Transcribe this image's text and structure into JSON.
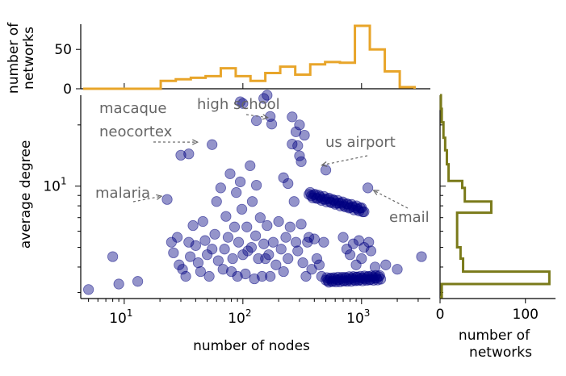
{
  "chart_data": [
    {
      "type": "scatter",
      "xlabel": "number of nodes",
      "ylabel": "average degree",
      "x_scale": "log",
      "y_scale": "log",
      "xlim": [
        4.3,
        3800
      ],
      "ylim": [
        2.8,
        28
      ],
      "x_ticks": [
        {
          "value": 10,
          "label": "10",
          "sup": "1"
        },
        {
          "value": 100,
          "label": "10",
          "sup": "2"
        },
        {
          "value": 1000,
          "label": "10",
          "sup": "3"
        }
      ],
      "y_ticks": [
        {
          "value": 10,
          "label": "10",
          "sup": "1"
        }
      ],
      "point_color": "#000080",
      "annotations": [
        {
          "lines": [
            "macaque",
            "neocortex"
          ],
          "x": 47,
          "y": 15.3
        },
        {
          "lines": [
            "high school"
          ],
          "x": 175,
          "y": 20.2
        },
        {
          "lines": [
            "us airport"
          ],
          "x": 500,
          "y": 12.0
        },
        {
          "lines": [
            "malaria"
          ],
          "x": 23,
          "y": 8.6
        },
        {
          "lines": [
            "email"
          ],
          "x": 1130,
          "y": 9.8
        }
      ],
      "points": [
        [
          5,
          3.1
        ],
        [
          8,
          4.5
        ],
        [
          9,
          3.3
        ],
        [
          13,
          3.4
        ],
        [
          23,
          8.6
        ],
        [
          25,
          5.3
        ],
        [
          26,
          4.7
        ],
        [
          28,
          5.6
        ],
        [
          29,
          4.1
        ],
        [
          31,
          3.9
        ],
        [
          33,
          3.6
        ],
        [
          35,
          5.3
        ],
        [
          36,
          4.5
        ],
        [
          38,
          6.4
        ],
        [
          40,
          5.1
        ],
        [
          42,
          4.2
        ],
        [
          44,
          3.8
        ],
        [
          46,
          6.7
        ],
        [
          48,
          5.4
        ],
        [
          50,
          4.6
        ],
        [
          52,
          3.6
        ],
        [
          55,
          4.9
        ],
        [
          58,
          5.8
        ],
        [
          60,
          8.4
        ],
        [
          62,
          4.3
        ],
        [
          65,
          9.8
        ],
        [
          68,
          3.9
        ],
        [
          70,
          4.9
        ],
        [
          72,
          7.1
        ],
        [
          75,
          5.6
        ],
        [
          78,
          11.5
        ],
        [
          80,
          3.8
        ],
        [
          82,
          4.4
        ],
        [
          85,
          6.3
        ],
        [
          88,
          9.3
        ],
        [
          90,
          3.6
        ],
        [
          92,
          5.3
        ],
        [
          95,
          10.5
        ],
        [
          98,
          7.7
        ],
        [
          100,
          4.6
        ],
        [
          105,
          3.7
        ],
        [
          108,
          6.3
        ],
        [
          110,
          4.8
        ],
        [
          115,
          12.6
        ],
        [
          118,
          5.0
        ],
        [
          120,
          8.4
        ],
        [
          125,
          3.5
        ],
        [
          128,
          5.7
        ],
        [
          130,
          10.1
        ],
        [
          135,
          4.4
        ],
        [
          140,
          7.0
        ],
        [
          145,
          3.6
        ],
        [
          150,
          5.2
        ],
        [
          155,
          4.4
        ],
        [
          160,
          6.4
        ],
        [
          165,
          4.6
        ],
        [
          170,
          3.6
        ],
        [
          175,
          20.2
        ],
        [
          180,
          5.3
        ],
        [
          190,
          4.1
        ],
        [
          200,
          6.7
        ],
        [
          210,
          4.9
        ],
        [
          220,
          3.8
        ],
        [
          230,
          5.6
        ],
        [
          240,
          4.4
        ],
        [
          250,
          6.3
        ],
        [
          260,
          16.1
        ],
        [
          270,
          8.4
        ],
        [
          280,
          5.3
        ],
        [
          290,
          4.8
        ],
        [
          300,
          20.0
        ],
        [
          310,
          6.5
        ],
        [
          320,
          4.2
        ],
        [
          330,
          17.8
        ],
        [
          340,
          3.6
        ],
        [
          350,
          5.3
        ],
        [
          360,
          5.6
        ],
        [
          380,
          3.9
        ],
        [
          400,
          5.5
        ],
        [
          420,
          4.4
        ],
        [
          440,
          4.1
        ],
        [
          460,
          3.6
        ],
        [
          480,
          5.3
        ],
        [
          500,
          12.0
        ],
        [
          260,
          21.9
        ],
        [
          280,
          18.5
        ],
        [
          290,
          15.8
        ],
        [
          300,
          14.1
        ],
        [
          310,
          13.2
        ],
        [
          240,
          10.3
        ],
        [
          220,
          11.0
        ],
        [
          700,
          5.6
        ],
        [
          750,
          4.9
        ],
        [
          800,
          4.6
        ],
        [
          850,
          5.2
        ],
        [
          900,
          4.1
        ],
        [
          950,
          5.4
        ],
        [
          1000,
          4.4
        ],
        [
          1050,
          5.0
        ],
        [
          1130,
          9.8
        ],
        [
          1150,
          5.3
        ],
        [
          1200,
          4.8
        ],
        [
          1300,
          4.0
        ],
        [
          1600,
          4.1
        ],
        [
          2000,
          3.9
        ],
        [
          3200,
          4.5
        ],
        [
          160,
          28.0
        ],
        [
          170,
          22.0
        ],
        [
          95,
          26.0
        ],
        [
          100,
          25.5
        ],
        [
          130,
          21.0
        ],
        [
          150,
          27.0
        ],
        [
          55,
          16.0
        ],
        [
          30,
          14.2
        ],
        [
          35,
          14.4
        ]
      ],
      "point_bands": [
        {
          "x_from": 360,
          "x_to": 1050,
          "y_from": 9.1,
          "y_to": 7.6,
          "count": 45
        },
        {
          "x_from": 500,
          "x_to": 1450,
          "y_from": 3.45,
          "y_to": 3.55,
          "count": 55
        }
      ]
    },
    {
      "type": "histogram",
      "orientation": "vertical",
      "ylabel": "number of networks",
      "ylim": [
        0,
        82
      ],
      "y_ticks": [
        0,
        50
      ],
      "color": "#e8a52a",
      "bin_edges": [
        4.5,
        6.5,
        8.5,
        11.4,
        15.0,
        20.3,
        27.2,
        36.4,
        48.5,
        65.1,
        87.0,
        115.9,
        154.5,
        206.4,
        276.2,
        369.5,
        492.9,
        657.5,
        879.0,
        1174.0,
        1570.0,
        2098.0,
        2800.0
      ],
      "counts": [
        0,
        0,
        0,
        0,
        0,
        10,
        12,
        14,
        16,
        26,
        16,
        10,
        20,
        28,
        18,
        31,
        34,
        33,
        80,
        50,
        22,
        2
      ]
    },
    {
      "type": "histogram",
      "orientation": "horizontal",
      "xlabel": "number of networks",
      "xlim": [
        0,
        140
      ],
      "x_ticks": [
        0,
        100
      ],
      "color": "#7a7a1a",
      "bins": [
        {
          "y_from": 28.0,
          "y_to": 24.0,
          "count": 1
        },
        {
          "y_from": 24.0,
          "y_to": 20.6,
          "count": 2
        },
        {
          "y_from": 20.6,
          "y_to": 17.3,
          "count": 4
        },
        {
          "y_from": 17.3,
          "y_to": 15.0,
          "count": 6
        },
        {
          "y_from": 15.0,
          "y_to": 12.8,
          "count": 8
        },
        {
          "y_from": 12.8,
          "y_to": 10.6,
          "count": 10
        },
        {
          "y_from": 10.6,
          "y_to": 9.8,
          "count": 26
        },
        {
          "y_from": 9.8,
          "y_to": 8.4,
          "count": 29
        },
        {
          "y_from": 8.4,
          "y_to": 7.4,
          "count": 60
        },
        {
          "y_from": 7.4,
          "y_to": 6.0,
          "count": 20
        },
        {
          "y_from": 6.0,
          "y_to": 5.0,
          "count": 20
        },
        {
          "y_from": 5.0,
          "y_to": 4.4,
          "count": 24
        },
        {
          "y_from": 4.4,
          "y_to": 3.8,
          "count": 27
        },
        {
          "y_from": 3.8,
          "y_to": 3.3,
          "count": 128
        },
        {
          "y_from": 3.3,
          "y_to": 2.85,
          "count": 2
        }
      ]
    }
  ]
}
